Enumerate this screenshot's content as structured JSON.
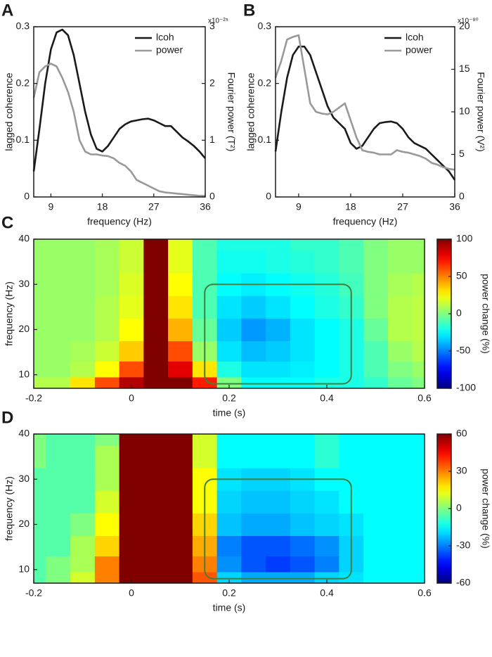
{
  "chart_data": [
    {
      "type": "line",
      "panel": "A",
      "x": [
        6,
        7,
        8,
        9,
        10,
        11,
        12,
        13,
        14,
        15,
        16,
        17,
        18,
        19,
        20,
        21,
        22,
        23,
        24,
        25,
        26,
        27,
        28,
        29,
        30,
        31,
        32,
        33,
        34,
        35,
        36
      ],
      "xlabel": "frequency (Hz)",
      "ylabel": "lagged coherence",
      "y2label": "Fourier power (T²)",
      "y2_exponent": "x10⁻²⁵",
      "xlim": [
        6,
        36
      ],
      "xticks": [
        9,
        18,
        27,
        36
      ],
      "ylim": [
        0,
        0.3
      ],
      "yticks": [
        0,
        0.1,
        0.2,
        0.3
      ],
      "y2lim": [
        0,
        3
      ],
      "y2ticks": [
        0,
        1,
        2,
        3
      ],
      "legend": "upper right",
      "series": [
        {
          "name": "lcoh",
          "color": "#1a1a1a",
          "values": [
            0.045,
            0.12,
            0.2,
            0.26,
            0.29,
            0.295,
            0.285,
            0.25,
            0.2,
            0.15,
            0.11,
            0.085,
            0.08,
            0.09,
            0.105,
            0.12,
            0.128,
            0.133,
            0.135,
            0.137,
            0.138,
            0.135,
            0.13,
            0.125,
            0.125,
            0.115,
            0.105,
            0.098,
            0.09,
            0.08,
            0.068
          ]
        },
        {
          "name": "power",
          "color": "#999999",
          "axis": "y2",
          "values": [
            1.75,
            2.2,
            2.3,
            2.35,
            2.3,
            2.1,
            1.85,
            1.5,
            1.0,
            0.8,
            0.75,
            0.75,
            0.73,
            0.72,
            0.68,
            0.6,
            0.55,
            0.45,
            0.3,
            0.25,
            0.2,
            0.15,
            0.1,
            0.08,
            0.07,
            0.06,
            0.05,
            0.04,
            0.03,
            0.02,
            0.02
          ]
        }
      ]
    },
    {
      "type": "line",
      "panel": "B",
      "x": [
        5,
        6,
        7,
        8,
        9,
        10,
        11,
        12,
        13,
        14,
        15,
        16,
        17,
        18,
        19,
        20,
        21,
        22,
        23,
        24,
        25,
        26,
        27,
        28,
        29,
        30,
        31,
        32,
        33,
        34,
        35,
        36
      ],
      "xlabel": "frequency (Hz)",
      "ylabel": "lagged coherence",
      "y2label": "Fourier power (V²)",
      "y2_exponent": "x10⁻⁸⁰",
      "xlim": [
        5,
        36
      ],
      "xticks": [
        9,
        18,
        27,
        36
      ],
      "ylim": [
        0,
        0.3
      ],
      "yticks": [
        0,
        0.1,
        0.2,
        0.3
      ],
      "y2lim": [
        0,
        20
      ],
      "y2ticks": [
        0,
        5,
        10,
        15,
        20
      ],
      "legend": "upper right",
      "series": [
        {
          "name": "lcoh",
          "color": "#1a1a1a",
          "values": [
            0.08,
            0.15,
            0.21,
            0.25,
            0.265,
            0.265,
            0.25,
            0.22,
            0.19,
            0.16,
            0.14,
            0.13,
            0.12,
            0.095,
            0.085,
            0.09,
            0.105,
            0.12,
            0.13,
            0.132,
            0.133,
            0.13,
            0.12,
            0.105,
            0.095,
            0.09,
            0.085,
            0.075,
            0.065,
            0.055,
            0.045,
            0.03
          ]
        },
        {
          "name": "power",
          "color": "#999999",
          "axis": "y2",
          "values": [
            14,
            16,
            18.5,
            18.8,
            19,
            15,
            11,
            10,
            9.8,
            9.7,
            10,
            10.5,
            11,
            9,
            7,
            5.5,
            5.3,
            5.2,
            5,
            5,
            5,
            5.5,
            5.3,
            5.2,
            5,
            4.8,
            4.5,
            4,
            3.8,
            3.5,
            3.3,
            3.2
          ]
        }
      ]
    },
    {
      "type": "heatmap",
      "panel": "C",
      "x": [
        -0.2,
        -0.15,
        -0.1,
        -0.05,
        0,
        0.05,
        0.1,
        0.15,
        0.2,
        0.25,
        0.3,
        0.35,
        0.4,
        0.45,
        0.5,
        0.55,
        0.6
      ],
      "y": [
        8,
        11,
        15,
        20,
        25,
        30,
        35,
        40
      ],
      "values": [
        [
          10,
          10,
          30,
          60,
          90,
          100,
          100,
          70,
          0,
          -25,
          -25,
          -25,
          -20,
          -20,
          -15,
          -5,
          0
        ],
        [
          5,
          5,
          10,
          25,
          60,
          100,
          80,
          30,
          -20,
          -30,
          -30,
          -28,
          -25,
          -20,
          -10,
          0,
          5
        ],
        [
          5,
          5,
          8,
          15,
          35,
          100,
          60,
          5,
          -30,
          -38,
          -35,
          -30,
          -25,
          -20,
          -10,
          5,
          10
        ],
        [
          5,
          5,
          5,
          10,
          25,
          100,
          40,
          -5,
          -35,
          -45,
          -40,
          -30,
          -25,
          -20,
          -5,
          10,
          12
        ],
        [
          5,
          5,
          5,
          10,
          20,
          100,
          30,
          -10,
          -30,
          -35,
          -30,
          -25,
          -20,
          -15,
          0,
          10,
          12
        ],
        [
          5,
          5,
          5,
          8,
          18,
          100,
          25,
          -10,
          -25,
          -28,
          -25,
          -22,
          -18,
          -12,
          0,
          8,
          10
        ],
        [
          5,
          5,
          5,
          8,
          15,
          100,
          20,
          -10,
          -22,
          -22,
          -20,
          -18,
          -15,
          -10,
          0,
          5,
          5
        ],
        [
          5,
          5,
          5,
          8,
          15,
          100,
          20,
          -10,
          -20,
          -20,
          -20,
          -15,
          -15,
          -10,
          0,
          5,
          5
        ]
      ],
      "xlim": [
        -0.2,
        0.6
      ],
      "xticks": [
        -0.2,
        0,
        0.2,
        0.4,
        0.6
      ],
      "ylim": [
        7,
        40
      ],
      "yticks": [
        10,
        20,
        30,
        40
      ],
      "xlabel": "time (s)",
      "ylabel": "frequency (Hz)",
      "colormap": "jet",
      "clim": [
        -100,
        100
      ],
      "cticks": [
        -100,
        -50,
        0,
        50,
        100
      ],
      "clabel": "power change (%)",
      "highlight": {
        "x": [
          0.15,
          0.45
        ],
        "y": [
          8,
          30
        ],
        "color": "#3f7f3f"
      }
    },
    {
      "type": "heatmap",
      "panel": "D",
      "x": [
        -0.2,
        -0.15,
        -0.1,
        -0.05,
        0,
        0.05,
        0.1,
        0.15,
        0.2,
        0.25,
        0.3,
        0.35,
        0.4,
        0.45,
        0.5,
        0.55,
        0.6
      ],
      "y": [
        8,
        11,
        15,
        20,
        25,
        30,
        35,
        40
      ],
      "values": [
        [
          -5,
          0,
          10,
          30,
          60,
          60,
          60,
          35,
          -20,
          -25,
          -25,
          -25,
          -20,
          -18,
          -15,
          -15,
          -15
        ],
        [
          -5,
          0,
          5,
          30,
          60,
          60,
          60,
          30,
          -28,
          -35,
          -38,
          -35,
          -30,
          -20,
          -15,
          -15,
          -15
        ],
        [
          -5,
          -5,
          5,
          20,
          60,
          60,
          60,
          25,
          -30,
          -35,
          -35,
          -32,
          -28,
          -20,
          -15,
          -15,
          -15
        ],
        [
          -5,
          -5,
          0,
          15,
          60,
          60,
          60,
          20,
          -22,
          -25,
          -25,
          -22,
          -20,
          -18,
          -15,
          -15,
          -15
        ],
        [
          -5,
          -5,
          -5,
          10,
          60,
          60,
          60,
          15,
          -20,
          -22,
          -22,
          -20,
          -18,
          -15,
          -15,
          -15,
          -15
        ],
        [
          -5,
          -5,
          -5,
          5,
          60,
          60,
          60,
          15,
          -18,
          -20,
          -20,
          -18,
          -15,
          -15,
          -15,
          -15,
          -15
        ],
        [
          0,
          -5,
          -5,
          5,
          60,
          60,
          60,
          10,
          -15,
          -15,
          -15,
          -15,
          -10,
          -15,
          -15,
          -15,
          -15
        ],
        [
          0,
          -5,
          -5,
          0,
          60,
          60,
          60,
          10,
          -15,
          -15,
          -15,
          -15,
          -10,
          -15,
          -15,
          -15,
          -15
        ]
      ],
      "xlim": [
        -0.2,
        0.6
      ],
      "xticks": [
        -0.2,
        0,
        0.2,
        0.4,
        0.6
      ],
      "ylim": [
        7,
        40
      ],
      "yticks": [
        10,
        20,
        30,
        40
      ],
      "xlabel": "time (s)",
      "ylabel": "frequency (Hz)",
      "colormap": "jet",
      "clim": [
        -60,
        60
      ],
      "cticks": [
        -60,
        -30,
        0,
        30,
        60
      ],
      "clabel": "power change (%)",
      "highlight": {
        "x": [
          0.15,
          0.45
        ],
        "y": [
          8,
          30
        ],
        "color": "#3f7f3f"
      }
    }
  ]
}
